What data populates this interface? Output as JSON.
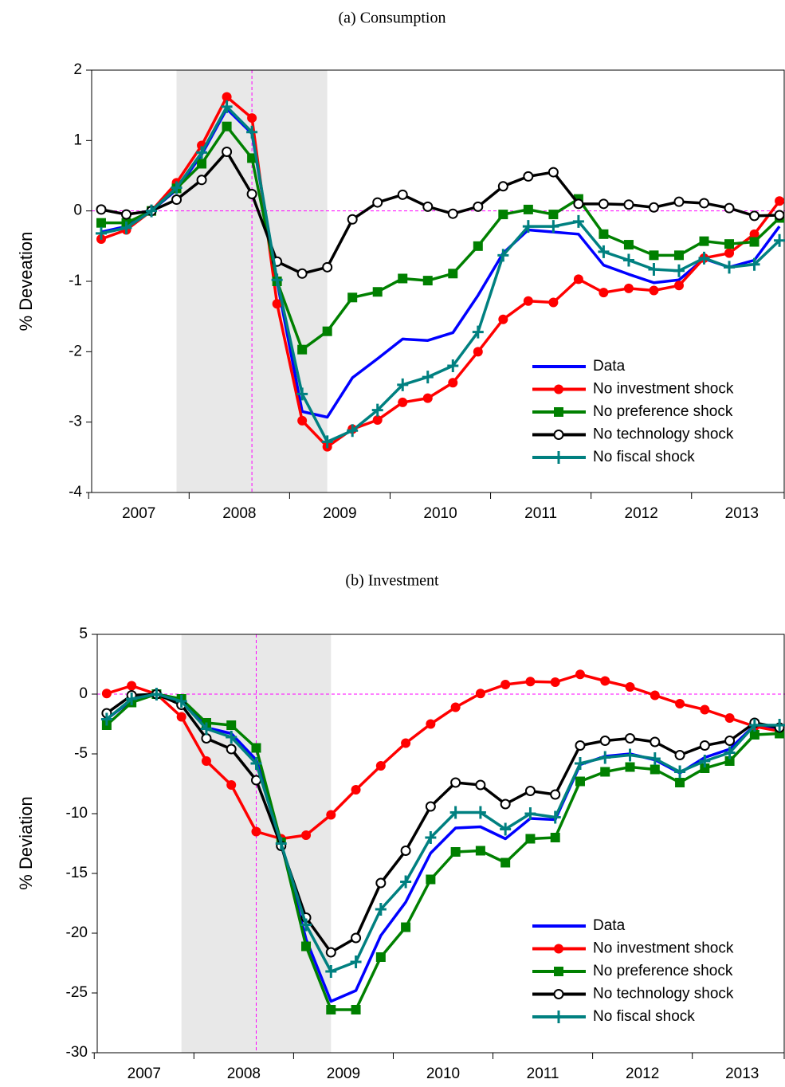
{
  "chart_data": [
    {
      "type": "line",
      "title": "(a) Consumption",
      "y_label": "% Deveation",
      "categories": [
        null,
        "2007",
        null,
        null,
        null,
        "2008",
        null,
        null,
        null,
        "2009",
        null,
        null,
        null,
        "2010",
        null,
        null,
        null,
        "2011",
        null,
        null,
        null,
        "2012",
        null,
        null,
        null,
        "2013",
        null,
        null
      ],
      "ylim": [
        -4,
        2
      ],
      "yticks": [
        2,
        1,
        0,
        -1,
        -2,
        -3,
        -4
      ],
      "series": [
        {
          "name": "Data",
          "color": "#0000ff",
          "marker": "none",
          "values": [
            -0.3,
            -0.22,
            0.0,
            0.3,
            0.8,
            1.45,
            1.1,
            -1.0,
            -2.85,
            -2.93,
            -2.37,
            -2.1,
            -1.82,
            -1.84,
            -1.73,
            -1.2,
            -0.6,
            -0.27,
            -0.3,
            -0.33,
            -0.77,
            -0.9,
            -1.02,
            -0.98,
            -0.68,
            -0.8,
            -0.7,
            -0.22
          ]
        },
        {
          "name": "No investment shock",
          "color": "#ff0000",
          "marker": "filled-circle",
          "values": [
            -0.4,
            -0.27,
            0.0,
            0.4,
            0.93,
            1.62,
            1.32,
            -1.32,
            -2.98,
            -3.35,
            -3.1,
            -2.97,
            -2.72,
            -2.66,
            -2.44,
            -2.0,
            -1.54,
            -1.28,
            -1.3,
            -0.97,
            -1.16,
            -1.1,
            -1.13,
            -1.06,
            -0.67,
            -0.6,
            -0.33,
            0.14
          ]
        },
        {
          "name": "No preference shock",
          "color": "#008000",
          "marker": "square",
          "values": [
            -0.17,
            -0.17,
            0.0,
            0.32,
            0.67,
            1.2,
            0.75,
            -1.0,
            -1.97,
            -1.71,
            -1.23,
            -1.15,
            -0.96,
            -0.99,
            -0.89,
            -0.5,
            -0.05,
            0.02,
            -0.05,
            0.17,
            -0.33,
            -0.48,
            -0.63,
            -0.63,
            -0.43,
            -0.47,
            -0.44,
            -0.1
          ]
        },
        {
          "name": "No technology shock",
          "color": "#000000",
          "marker": "open-circle",
          "values": [
            0.02,
            -0.05,
            0.0,
            0.16,
            0.44,
            0.84,
            0.24,
            -0.72,
            -0.89,
            -0.8,
            -0.12,
            0.12,
            0.23,
            0.06,
            -0.04,
            0.06,
            0.35,
            0.49,
            0.55,
            0.1,
            0.1,
            0.09,
            0.05,
            0.13,
            0.11,
            0.04,
            -0.07,
            -0.06
          ]
        },
        {
          "name": "No fiscal shock",
          "color": "#008080",
          "marker": "plus",
          "values": [
            -0.32,
            -0.24,
            0.0,
            0.33,
            0.83,
            1.48,
            1.12,
            -0.98,
            -2.6,
            -3.28,
            -3.12,
            -2.83,
            -2.47,
            -2.36,
            -2.2,
            -1.72,
            -0.63,
            -0.22,
            -0.22,
            -0.15,
            -0.58,
            -0.7,
            -0.83,
            -0.85,
            -0.67,
            -0.8,
            -0.76,
            -0.42
          ]
        }
      ]
    },
    {
      "type": "line",
      "title": "(b) Investment",
      "y_label": "% Deviation",
      "categories": [
        null,
        "2007",
        null,
        null,
        null,
        "2008",
        null,
        null,
        null,
        "2009",
        null,
        null,
        null,
        "2010",
        null,
        null,
        null,
        "2011",
        null,
        null,
        null,
        "2012",
        null,
        null,
        null,
        "2013",
        null,
        null
      ],
      "ylim": [
        -30,
        5
      ],
      "yticks": [
        5,
        0,
        -5,
        -10,
        -15,
        -20,
        -25,
        -30
      ],
      "series": [
        {
          "name": "Data",
          "color": "#0000ff",
          "marker": "none",
          "values": [
            -2.1,
            -0.5,
            0.0,
            -0.5,
            -2.8,
            -3.3,
            -5.5,
            -12.5,
            -20.5,
            -25.7,
            -24.8,
            -20.2,
            -17.4,
            -13.3,
            -11.2,
            -11.1,
            -12.1,
            -10.4,
            -10.5,
            -5.9,
            -5.2,
            -5.0,
            -5.5,
            -6.6,
            -5.3,
            -4.6,
            -2.6,
            -2.9
          ]
        },
        {
          "name": "No investment shock",
          "color": "#ff0000",
          "marker": "filled-circle",
          "values": [
            0.05,
            0.7,
            0.0,
            -1.9,
            -5.6,
            -7.6,
            -11.5,
            -12.1,
            -11.8,
            -10.1,
            -8.0,
            -6.0,
            -4.1,
            -2.5,
            -1.1,
            0.05,
            0.8,
            1.05,
            1.0,
            1.65,
            1.1,
            0.6,
            -0.1,
            -0.8,
            -1.3,
            -2.0,
            -2.7,
            -3.1
          ]
        },
        {
          "name": "No preference shock",
          "color": "#008000",
          "marker": "square",
          "values": [
            -2.6,
            -0.7,
            0.0,
            -0.4,
            -2.4,
            -2.6,
            -4.5,
            -12.4,
            -21.1,
            -26.4,
            -26.4,
            -22.0,
            -19.5,
            -15.5,
            -13.2,
            -13.1,
            -14.1,
            -12.1,
            -12.0,
            -7.3,
            -6.5,
            -6.1,
            -6.3,
            -7.4,
            -6.2,
            -5.6,
            -3.4,
            -3.3
          ]
        },
        {
          "name": "No technology shock",
          "color": "#000000",
          "marker": "open-circle",
          "values": [
            -1.6,
            -0.1,
            0.0,
            -0.9,
            -3.7,
            -4.6,
            -7.2,
            -12.7,
            -18.7,
            -21.6,
            -20.4,
            -15.8,
            -13.1,
            -9.4,
            -7.4,
            -7.6,
            -9.2,
            -8.1,
            -8.4,
            -4.3,
            -3.9,
            -3.7,
            -4.0,
            -5.1,
            -4.3,
            -3.9,
            -2.4,
            -2.8
          ]
        },
        {
          "name": "No fiscal shock",
          "color": "#008080",
          "marker": "plus",
          "values": [
            -2.1,
            -0.4,
            0.0,
            -0.6,
            -2.9,
            -3.6,
            -5.8,
            -12.5,
            -19.3,
            -23.2,
            -22.4,
            -18.0,
            -15.7,
            -12.0,
            -9.9,
            -9.9,
            -11.3,
            -10.0,
            -10.3,
            -5.8,
            -5.3,
            -5.1,
            -5.4,
            -6.5,
            -5.6,
            -4.9,
            -2.6,
            -2.6
          ]
        }
      ]
    }
  ]
}
